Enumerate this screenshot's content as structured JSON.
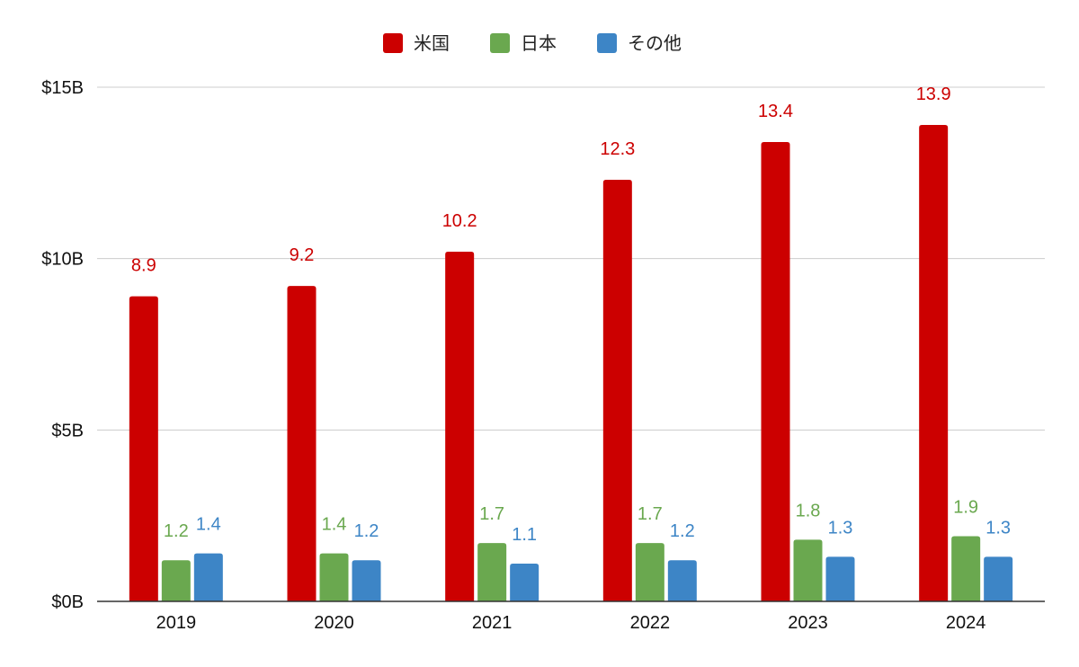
{
  "chart_data": {
    "type": "bar",
    "categories": [
      "2019",
      "2020",
      "2021",
      "2022",
      "2023",
      "2024"
    ],
    "series": [
      {
        "name": "米国",
        "color": "#cc0000",
        "values": [
          8.9,
          9.2,
          10.2,
          12.3,
          13.4,
          13.9
        ],
        "labels": [
          "8.9",
          "9.2",
          "10.2",
          "12.3",
          "13.4",
          "13.9"
        ]
      },
      {
        "name": "日本",
        "color": "#6aa84f",
        "values": [
          1.2,
          1.4,
          1.7,
          1.7,
          1.8,
          1.9
        ],
        "labels": [
          "1.2",
          "1.4",
          "1.7",
          "1.7",
          "1.8",
          "1.9"
        ]
      },
      {
        "name": "その他",
        "color": "#3d85c6",
        "values": [
          1.4,
          1.2,
          1.1,
          1.2,
          1.3,
          1.3
        ],
        "labels": [
          "1.4",
          "1.2",
          "1.1",
          "1.2",
          "1.3",
          "1.3"
        ]
      }
    ],
    "ylim": [
      0,
      15
    ],
    "yticks": [
      {
        "value": 0,
        "label": "$0B"
      },
      {
        "value": 5,
        "label": "$5B"
      },
      {
        "value": 10,
        "label": "$10B"
      },
      {
        "value": 15,
        "label": "$15B"
      }
    ],
    "grid": true,
    "legend_position": "top-center",
    "title": "",
    "xlabel": "",
    "ylabel": ""
  }
}
